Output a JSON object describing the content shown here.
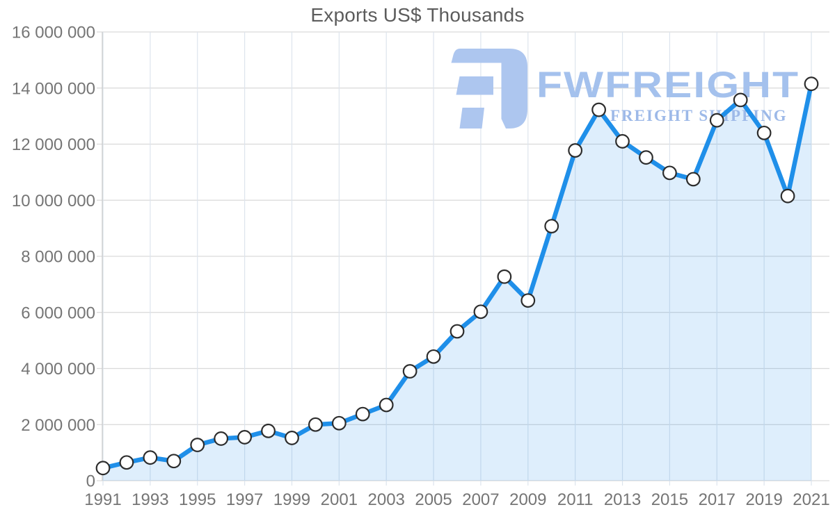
{
  "chart_data": {
    "type": "area",
    "title": "Exports US$ Thousands",
    "series_name": "Exports US$ Thousands",
    "x": [
      1991,
      1992,
      1993,
      1994,
      1995,
      1996,
      1997,
      1998,
      1999,
      2000,
      2001,
      2002,
      2003,
      2004,
      2005,
      2006,
      2007,
      2008,
      2009,
      2010,
      2011,
      2012,
      2013,
      2014,
      2015,
      2016,
      2017,
      2018,
      2019,
      2020,
      2021
    ],
    "values": [
      450000,
      650000,
      825000,
      700000,
      1275000,
      1500000,
      1550000,
      1775000,
      1525000,
      2000000,
      2050000,
      2375000,
      2700000,
      3900000,
      4425000,
      5325000,
      6025000,
      7275000,
      6425000,
      9075000,
      11775000,
      13225000,
      12100000,
      11525000,
      10975000,
      10750000,
      12850000,
      13575000,
      12400000,
      10150000,
      14150000
    ],
    "xlabel": "",
    "ylabel": "",
    "ylim": [
      0,
      16000000
    ],
    "xlim": [
      1991,
      2021
    ],
    "grid": true,
    "legend_position": "none",
    "marker": "circle",
    "y_ticks": [
      0,
      2000000,
      4000000,
      6000000,
      8000000,
      10000000,
      12000000,
      14000000,
      16000000
    ],
    "y_tick_labels": [
      "0",
      "2 000 000",
      "4 000 000",
      "6 000 000",
      "8 000 000",
      "10 000 000",
      "12 000 000",
      "14 000 000",
      "16 000 000"
    ],
    "x_tick_labels": [
      "1991",
      "1993",
      "1995",
      "1997",
      "1999",
      "2001",
      "2003",
      "2005",
      "2007",
      "2009",
      "2011",
      "2013",
      "2015",
      "2017",
      "2019",
      "2021"
    ]
  },
  "watermark": {
    "brand": "FWFREIGHT",
    "tagline": "FREIGHT SHIPPING"
  },
  "colors": {
    "line": "#1f8fe9",
    "area_fill": "rgba(31,143,233,0.15)",
    "marker_fill": "#ffffff",
    "marker_stroke": "#2d2d2d",
    "grid_horizontal": "#d9d9d9",
    "grid_vertical": "#dde4ed",
    "axis": "#c9c9c9",
    "title_text": "#5c5c5c",
    "tick_label": "#757575",
    "watermark_logo": "#adc6ef",
    "watermark_brand": "#a4c1ed",
    "watermark_tagline": "#9db9e8"
  }
}
